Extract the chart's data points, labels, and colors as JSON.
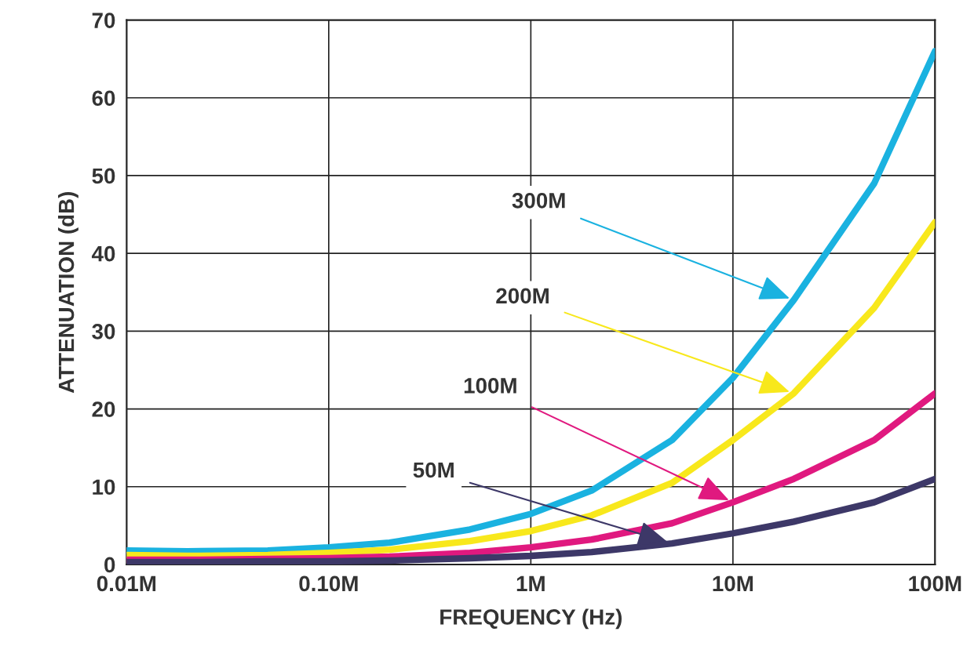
{
  "chart_data": {
    "type": "line",
    "xlabel": "FREQUENCY (Hz)",
    "ylabel": "ATTENUATION (dB)",
    "log": "x",
    "xlim": [
      0.01,
      100
    ],
    "xticks": [
      {
        "value": 0.01,
        "label": "0.01M"
      },
      {
        "value": 0.1,
        "label": "0.10M"
      },
      {
        "value": 1,
        "label": "1M"
      },
      {
        "value": 10,
        "label": "10M"
      },
      {
        "value": 100,
        "label": "100M"
      }
    ],
    "ylim": [
      0,
      70
    ],
    "yticks": [
      0,
      10,
      20,
      30,
      40,
      50,
      60,
      70
    ],
    "grid": true,
    "line_style": "solid",
    "marker": "none",
    "x": [
      0.01,
      0.02,
      0.05,
      0.1,
      0.2,
      0.5,
      1,
      2,
      5,
      10,
      20,
      50,
      100
    ],
    "series": [
      {
        "color": "#1ab2e0",
        "values": [
          1.8,
          1.7,
          1.8,
          2.2,
          2.8,
          4.5,
          6.5,
          9.5,
          16,
          24,
          34,
          49,
          66
        ]
      },
      {
        "color": "#f8e81c",
        "values": [
          1.2,
          1.1,
          1.2,
          1.5,
          1.9,
          3,
          4.3,
          6.3,
          10.5,
          16,
          22,
          33,
          44
        ]
      },
      {
        "color": "#e0197f",
        "values": [
          0.6,
          0.6,
          0.7,
          0.8,
          1,
          1.5,
          2.2,
          3.2,
          5.3,
          8,
          11,
          16,
          22
        ]
      },
      {
        "color": "#3d3868",
        "values": [
          0.3,
          0.3,
          0.4,
          0.4,
          0.5,
          0.8,
          1.1,
          1.6,
          2.7,
          4,
          5.5,
          8,
          11
        ]
      }
    ],
    "annotations": [
      {
        "text": "300M",
        "x": 20,
        "y": 34
      },
      {
        "text": "200M",
        "x": 20,
        "y": 22
      },
      {
        "text": "100M",
        "x": 10,
        "y": 8
      },
      {
        "text": "50M",
        "x": 5,
        "y": 2.7
      }
    ]
  }
}
